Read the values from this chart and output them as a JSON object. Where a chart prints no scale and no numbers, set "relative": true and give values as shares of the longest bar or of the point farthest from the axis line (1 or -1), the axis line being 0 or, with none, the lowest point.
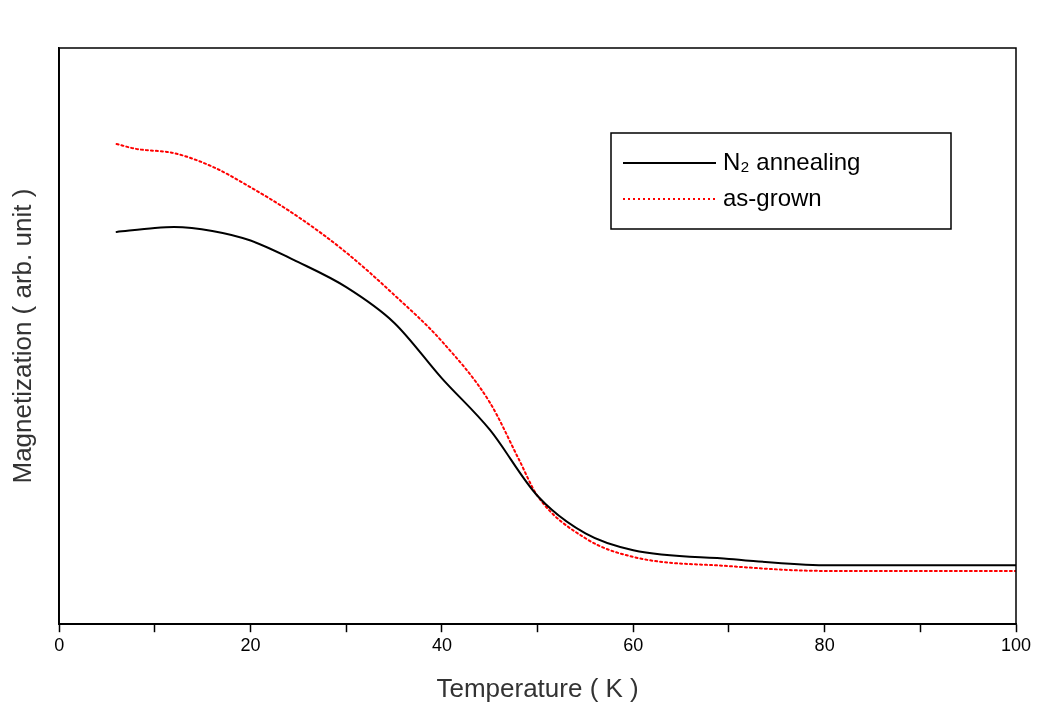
{
  "chart_data": {
    "type": "line",
    "relative": true,
    "xlabel": "Temperature ( K )",
    "ylabel": "Magnetization ( arb. unit )",
    "xlim": [
      0,
      100
    ],
    "xticks": [
      0,
      {
        "value": 10,
        "label": null
      },
      20,
      {
        "value": 30,
        "label": null
      },
      40,
      {
        "value": 50,
        "label": null
      },
      60,
      {
        "value": 70,
        "label": null
      },
      80,
      {
        "value": 90,
        "label": null
      },
      100
    ],
    "legend": "top right",
    "grid": false,
    "marker": "none",
    "series": [
      {
        "name": "N₂ annealing",
        "color": "#000000",
        "line_style": "solid",
        "x": [
          6,
          10,
          12,
          16,
          20,
          25,
          30,
          35,
          40,
          45,
          50,
          55,
          60,
          70,
          80,
          100
        ],
        "values": [
          0.817,
          0.825,
          0.827,
          0.819,
          0.799,
          0.754,
          0.702,
          0.628,
          0.512,
          0.405,
          0.267,
          0.189,
          0.154,
          0.136,
          0.123,
          0.123
        ]
      },
      {
        "name": "as-grown",
        "color": "#ff0000",
        "line_style": "dotted",
        "x": [
          6,
          8,
          12,
          16,
          20,
          25,
          30,
          35,
          40,
          45,
          48,
          50,
          55,
          60,
          70,
          80,
          100
        ],
        "values": [
          1.0,
          0.99,
          0.981,
          0.953,
          0.91,
          0.848,
          0.774,
          0.686,
          0.589,
          0.462,
          0.345,
          0.267,
          0.179,
          0.14,
          0.121,
          0.111,
          0.111
        ]
      }
    ]
  }
}
